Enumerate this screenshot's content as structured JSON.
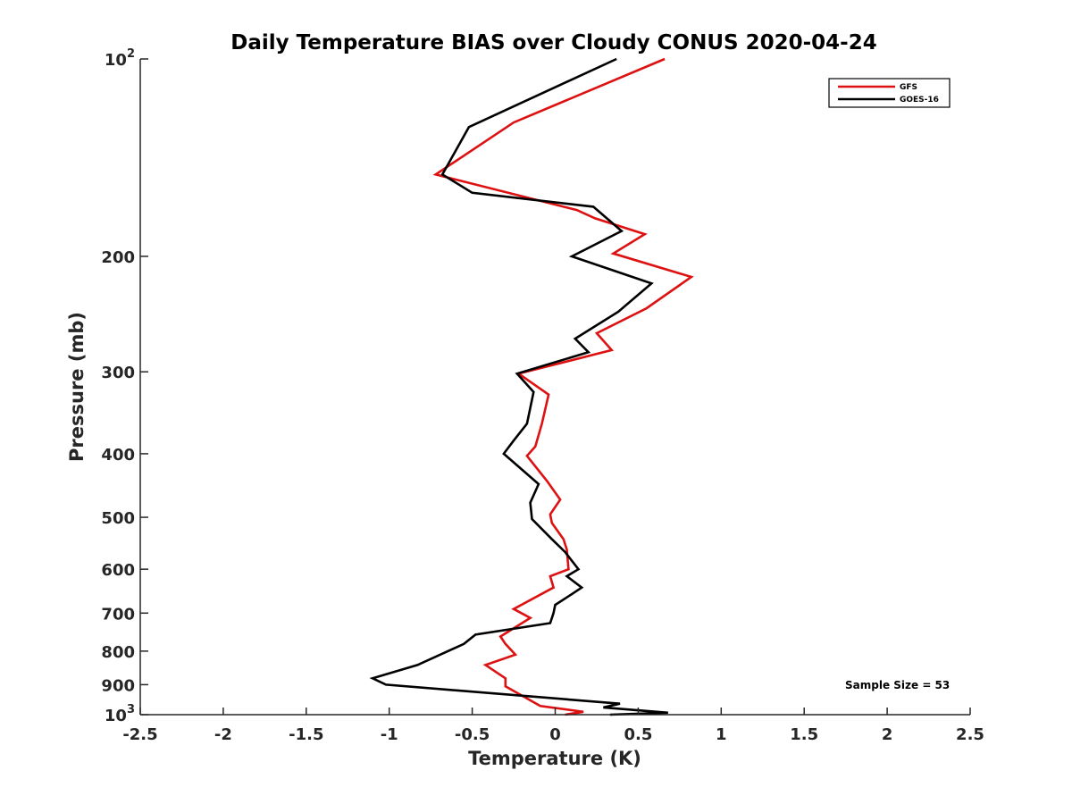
{
  "chart_data": {
    "type": "line",
    "title": "Daily Temperature BIAS over Cloudy CONUS 2020-04-24",
    "xlabel": "Temperature (K)",
    "ylabel": "Pressure (mb)",
    "xlim": [
      -2.5,
      2.5
    ],
    "ylim": [
      100,
      1000
    ],
    "y_scale": "log",
    "y_reversed": true,
    "x_ticks": [
      {
        "value": -2.5,
        "label": "-2.5"
      },
      {
        "value": -2,
        "label": "-2"
      },
      {
        "value": -1.5,
        "label": "-1.5"
      },
      {
        "value": -1,
        "label": "-1"
      },
      {
        "value": -0.5,
        "label": "-0.5"
      },
      {
        "value": 0,
        "label": "0"
      },
      {
        "value": 0.5,
        "label": "0.5"
      },
      {
        "value": 1,
        "label": "1"
      },
      {
        "value": 1.5,
        "label": "1.5"
      },
      {
        "value": 2,
        "label": "2"
      },
      {
        "value": 2.5,
        "label": "2.5"
      }
    ],
    "y_ticks": [
      {
        "value": 100,
        "base": "10",
        "exp": "2"
      },
      {
        "value": 200,
        "base": "200",
        "exp": ""
      },
      {
        "value": 300,
        "base": "300",
        "exp": ""
      },
      {
        "value": 400,
        "base": "400",
        "exp": ""
      },
      {
        "value": 500,
        "base": "500",
        "exp": ""
      },
      {
        "value": 600,
        "base": "600",
        "exp": ""
      },
      {
        "value": 700,
        "base": "700",
        "exp": ""
      },
      {
        "value": 800,
        "base": "800",
        "exp": ""
      },
      {
        "value": 900,
        "base": "900",
        "exp": ""
      },
      {
        "value": 1000,
        "base": "10",
        "exp": "3"
      }
    ],
    "grid": false,
    "legend_position": "top-right",
    "series": [
      {
        "name": "GFS",
        "color": "#dd1111",
        "points": [
          [
            0.66,
            100
          ],
          [
            -0.25,
            125
          ],
          [
            -0.72,
            150
          ],
          [
            0.13,
            170
          ],
          [
            0.24,
            175
          ],
          [
            0.54,
            185
          ],
          [
            0.35,
            198
          ],
          [
            0.82,
            215
          ],
          [
            0.55,
            240
          ],
          [
            0.25,
            262
          ],
          [
            0.34,
            278
          ],
          [
            -0.22,
            302
          ],
          [
            -0.04,
            325
          ],
          [
            -0.08,
            360
          ],
          [
            -0.12,
            390
          ],
          [
            -0.17,
            403
          ],
          [
            -0.05,
            440
          ],
          [
            0.03,
            470
          ],
          [
            -0.03,
            495
          ],
          [
            -0.02,
            510
          ],
          [
            0.05,
            540
          ],
          [
            0.07,
            560
          ],
          [
            0.08,
            600
          ],
          [
            -0.03,
            615
          ],
          [
            -0.01,
            640
          ],
          [
            -0.25,
            690
          ],
          [
            -0.15,
            712
          ],
          [
            -0.33,
            760
          ],
          [
            -0.3,
            780
          ],
          [
            -0.24,
            810
          ],
          [
            -0.42,
            840
          ],
          [
            -0.3,
            880
          ],
          [
            -0.3,
            905
          ],
          [
            -0.09,
            970
          ],
          [
            0.17,
            990
          ],
          [
            0.06,
            1000
          ]
        ]
      },
      {
        "name": "GOES-16",
        "color": "#000000",
        "points": [
          [
            0.37,
            100
          ],
          [
            -0.52,
            127
          ],
          [
            -0.68,
            150
          ],
          [
            -0.5,
            160
          ],
          [
            0.23,
            168
          ],
          [
            0.4,
            183
          ],
          [
            0.1,
            200
          ],
          [
            0.58,
            220
          ],
          [
            0.38,
            243
          ],
          [
            0.12,
            267
          ],
          [
            0.2,
            280
          ],
          [
            -0.23,
            302
          ],
          [
            -0.13,
            322
          ],
          [
            -0.17,
            360
          ],
          [
            -0.25,
            382
          ],
          [
            -0.31,
            400
          ],
          [
            -0.1,
            445
          ],
          [
            -0.15,
            475
          ],
          [
            -0.14,
            503
          ],
          [
            -0.02,
            540
          ],
          [
            0.06,
            565
          ],
          [
            0.14,
            600
          ],
          [
            0.07,
            615
          ],
          [
            0.16,
            640
          ],
          [
            0.1,
            655
          ],
          [
            0.0,
            680
          ],
          [
            -0.01,
            700
          ],
          [
            -0.03,
            725
          ],
          [
            -0.48,
            755
          ],
          [
            -0.55,
            780
          ],
          [
            -0.83,
            840
          ],
          [
            -1.1,
            880
          ],
          [
            -1.02,
            900
          ],
          [
            0.39,
            962
          ],
          [
            0.29,
            975
          ],
          [
            0.68,
            993
          ],
          [
            0.33,
            1000
          ]
        ]
      }
    ],
    "annotation": "Sample Size = 53"
  }
}
